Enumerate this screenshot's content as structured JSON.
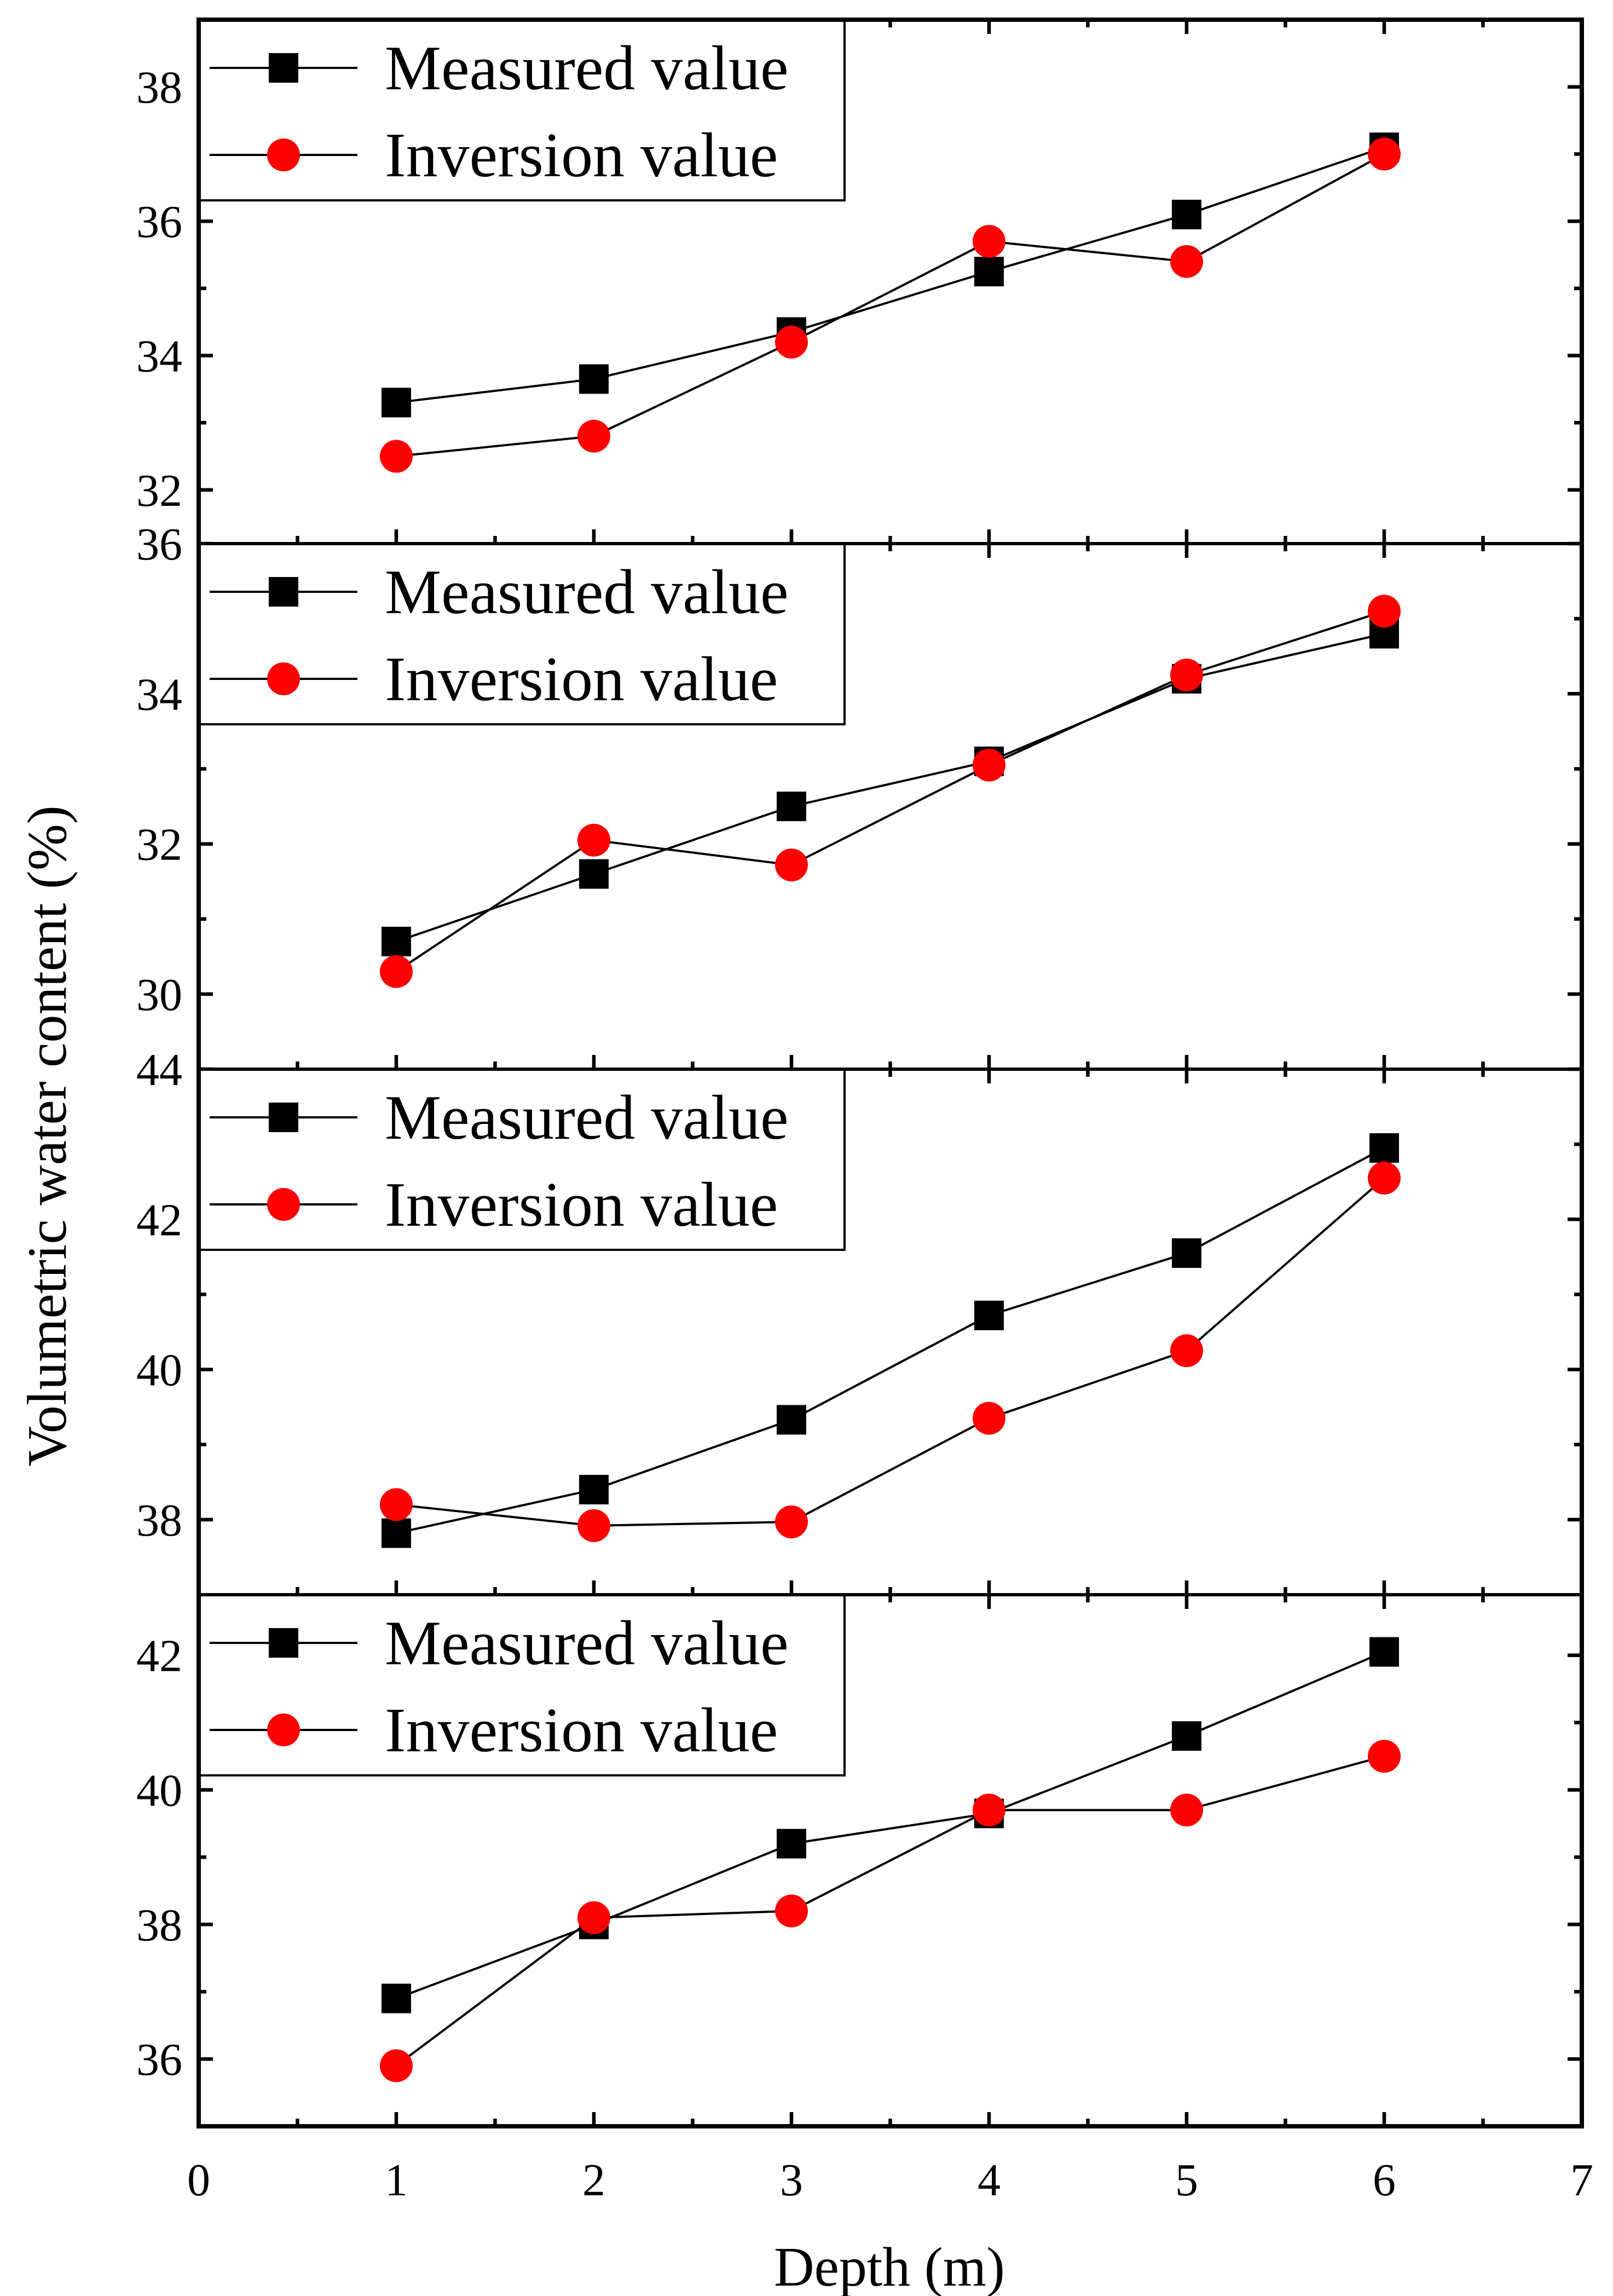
{
  "chart_data": {
    "type": "line",
    "xlabel": "Depth (m)",
    "ylabel": "Volumetric water content (%)",
    "xlim": [
      0,
      7
    ],
    "xticks": [
      0,
      1,
      2,
      3,
      4,
      5,
      6,
      7
    ],
    "x": [
      1,
      2,
      3,
      4,
      5,
      6
    ],
    "colors": {
      "measured": "#000000",
      "inversion": "#ff0000",
      "axis": "#000000"
    },
    "panels": [
      {
        "ylim": [
          31.2,
          39.0
        ],
        "yticks": [
          32,
          34,
          36,
          38
        ],
        "legend": [
          "Measured value",
          "Inversion value"
        ],
        "series": [
          {
            "name": "Measured value",
            "marker": "square",
            "values": [
              33.3,
              33.65,
              34.35,
              35.25,
              36.1,
              37.1
            ]
          },
          {
            "name": "Inversion value",
            "marker": "circle",
            "values": [
              32.5,
              32.8,
              34.2,
              35.7,
              35.4,
              37.0
            ]
          }
        ]
      },
      {
        "ylim": [
          29.0,
          36.0
        ],
        "yticks": [
          30,
          32,
          34,
          36
        ],
        "legend": [
          "Measured value",
          "Inversion value"
        ],
        "series": [
          {
            "name": "Measured value",
            "marker": "square",
            "values": [
              30.7,
              31.6,
              32.5,
              33.1,
              34.2,
              34.8
            ]
          },
          {
            "name": "Inversion value",
            "marker": "circle",
            "values": [
              30.3,
              32.05,
              31.72,
              33.05,
              34.25,
              35.1
            ]
          }
        ]
      },
      {
        "ylim": [
          37.0,
          44.0
        ],
        "yticks": [
          38,
          40,
          42,
          44
        ],
        "legend": [
          "Measured value",
          "Inversion value"
        ],
        "series": [
          {
            "name": "Measured value",
            "marker": "square",
            "values": [
              37.82,
              38.4,
              39.33,
              40.72,
              41.55,
              42.95
            ]
          },
          {
            "name": "Inversion value",
            "marker": "circle",
            "values": [
              38.2,
              37.92,
              37.97,
              39.35,
              40.25,
              42.55
            ]
          }
        ]
      },
      {
        "ylim": [
          35.0,
          42.9
        ],
        "yticks": [
          36,
          38,
          40,
          42
        ],
        "legend": [
          "Measured value",
          "Inversion value"
        ],
        "series": [
          {
            "name": "Measured value",
            "marker": "square",
            "values": [
              36.9,
              38.0,
              39.2,
              39.65,
              40.8,
              42.05
            ]
          },
          {
            "name": "Inversion value",
            "marker": "circle",
            "values": [
              35.9,
              38.1,
              38.2,
              39.7,
              39.7,
              40.5
            ]
          }
        ]
      }
    ]
  }
}
